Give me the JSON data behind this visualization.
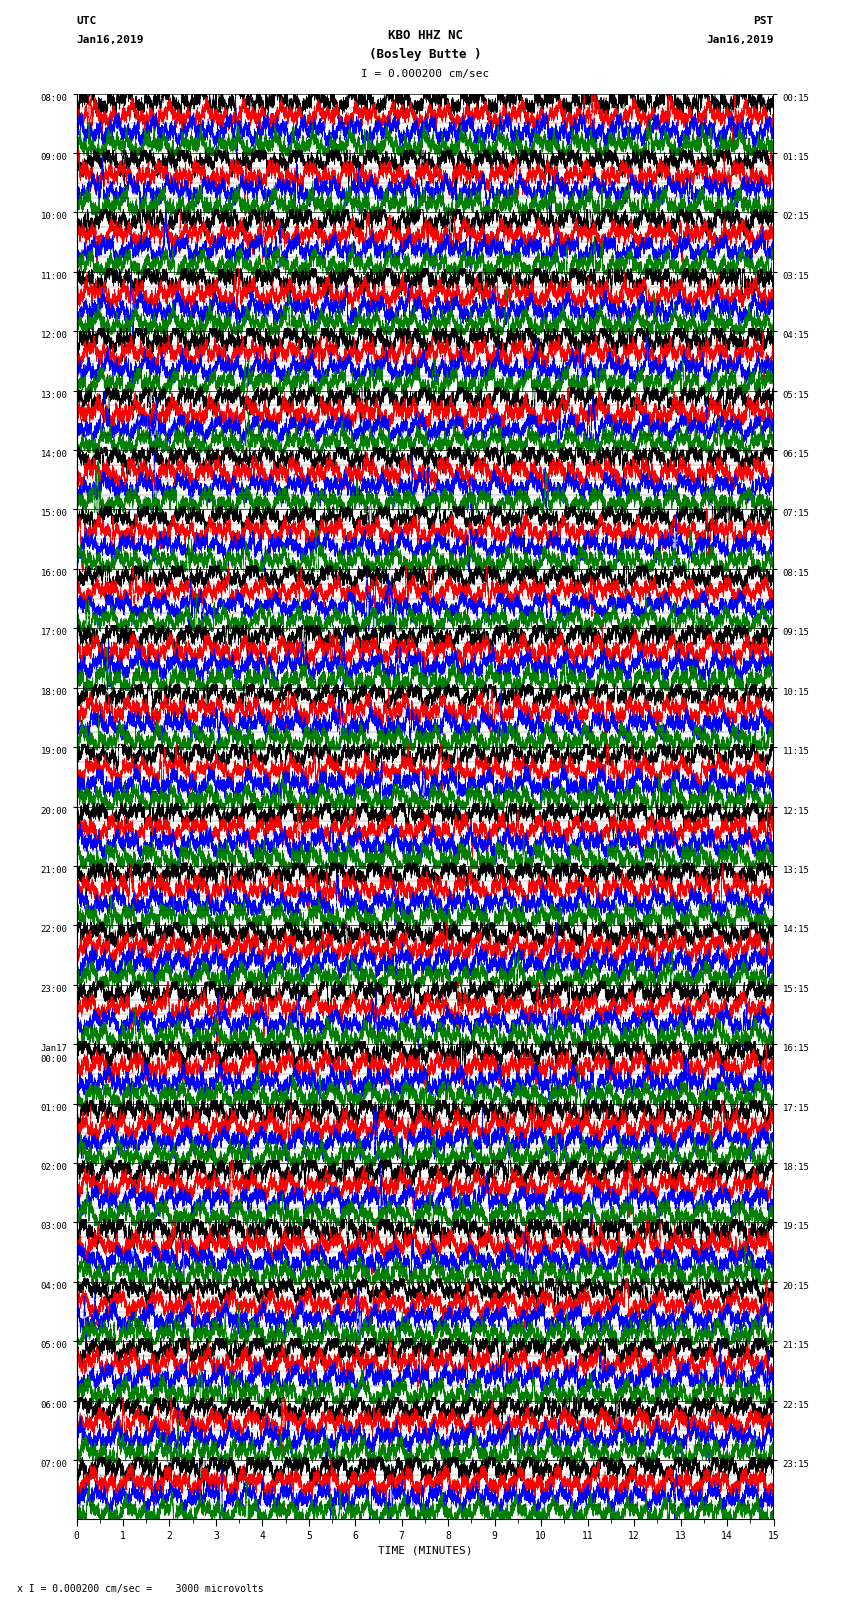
{
  "title_line1": "KBO HHZ NC",
  "title_line2": "(Bosley Butte )",
  "scale_label": "I = 0.000200 cm/sec",
  "bottom_label": "x I = 0.000200 cm/sec =    3000 microvolts",
  "xlabel": "TIME (MINUTES)",
  "left_header_line1": "UTC",
  "left_header_line2": "Jan16,2019",
  "right_header_line1": "PST",
  "right_header_line2": "Jan16,2019",
  "utc_times": [
    "08:00",
    "09:00",
    "10:00",
    "11:00",
    "12:00",
    "13:00",
    "14:00",
    "15:00",
    "16:00",
    "17:00",
    "18:00",
    "19:00",
    "20:00",
    "21:00",
    "22:00",
    "23:00",
    "Jan17\n00:00",
    "01:00",
    "02:00",
    "03:00",
    "04:00",
    "05:00",
    "06:00",
    "07:00"
  ],
  "pst_times": [
    "00:15",
    "01:15",
    "02:15",
    "03:15",
    "04:15",
    "05:15",
    "06:15",
    "07:15",
    "08:15",
    "09:15",
    "10:15",
    "11:15",
    "12:15",
    "13:15",
    "14:15",
    "15:15",
    "16:15",
    "17:15",
    "18:15",
    "19:15",
    "20:15",
    "21:15",
    "22:15",
    "23:15"
  ],
  "n_rows": 24,
  "n_traces_per_row": 4,
  "minutes_per_row": 15,
  "colors": [
    "black",
    "red",
    "blue",
    "green"
  ],
  "fig_width": 8.5,
  "fig_height": 16.13,
  "bg_color": "white",
  "amplitude_scale": 0.42,
  "noise_base": 0.15,
  "noise_spike_prob": 0.003,
  "noise_spike_amp": 0.8
}
